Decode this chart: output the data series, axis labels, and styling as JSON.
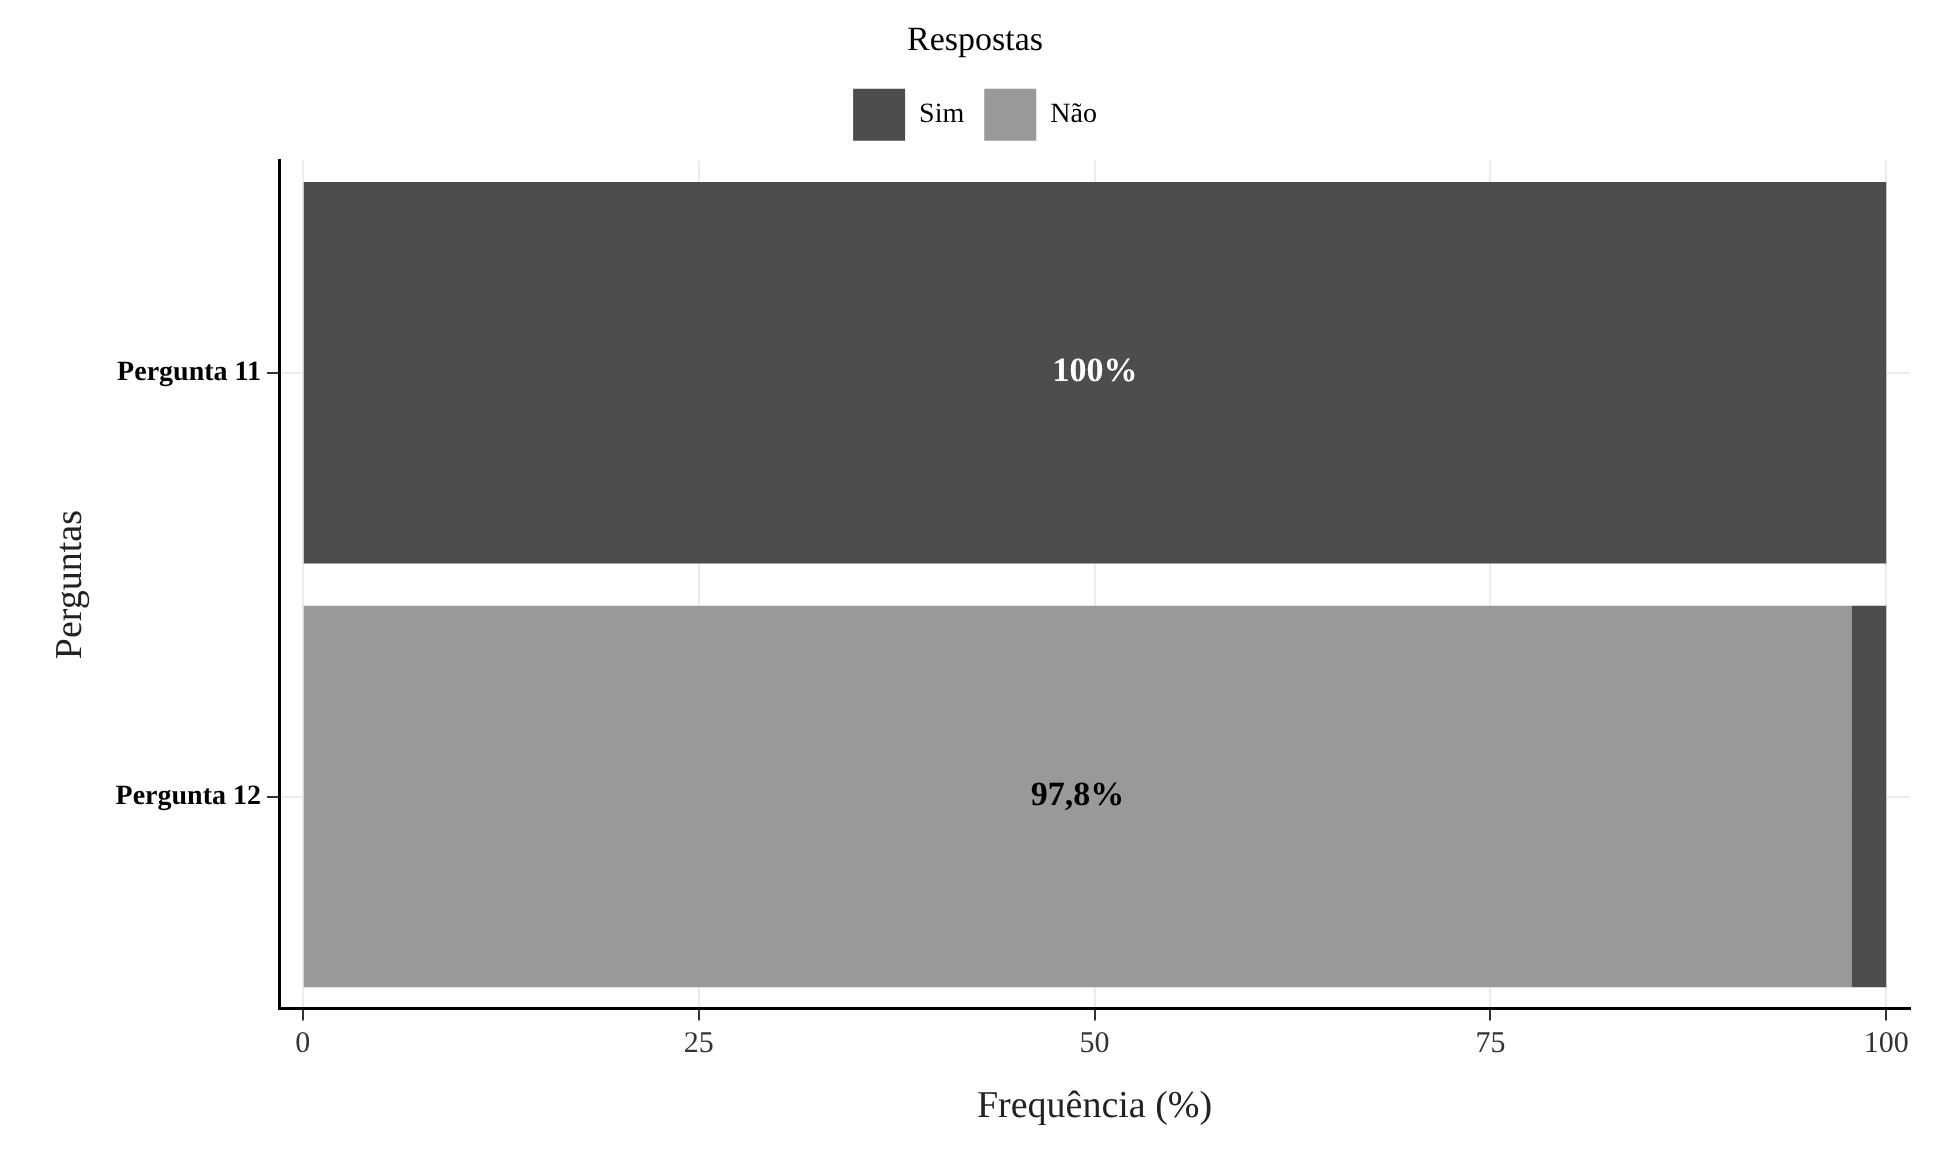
{
  "chart_data": {
    "type": "bar",
    "orientation": "horizontal",
    "stacked": true,
    "xlabel": "Frequência (%)",
    "ylabel": "Perguntas",
    "legend_title": "Respostas",
    "legend": "top",
    "grid": true,
    "categories": [
      "Pergunta 11",
      "Pergunta 12"
    ],
    "xlim": [
      -1.5,
      101.5
    ],
    "xticks": [
      0,
      25,
      50,
      75,
      100
    ],
    "series": [
      {
        "name": "Não",
        "color": "#999999",
        "values": [
          0,
          97.8
        ],
        "value_labels": [
          null,
          "97,8%"
        ]
      },
      {
        "name": "Sim",
        "color": "#4d4d4d",
        "values": [
          100,
          2.2
        ],
        "value_labels": [
          "100%",
          null
        ]
      }
    ]
  }
}
